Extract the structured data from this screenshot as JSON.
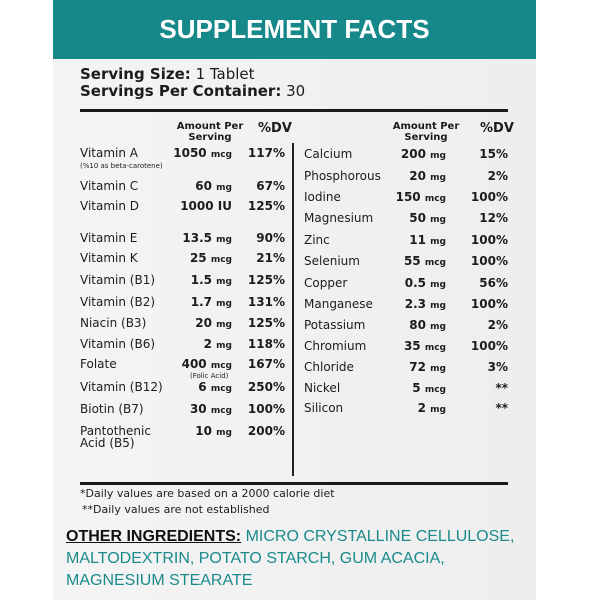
{
  "title": "SUPPLEMENT FACTS",
  "serving": {
    "size_label": "Serving Size:",
    "size_value": "1 Tablet",
    "per_container_label": "Servings Per Container:",
    "per_container_value": "30"
  },
  "columns": {
    "amount": "Amount Per Serving",
    "dv": "%DV"
  },
  "left_rows": [
    {
      "name": "Vitamin A",
      "note": "(%10 as beta-carotene)",
      "amount": "1050",
      "unit": "mcg",
      "dv": "117%"
    },
    {
      "name": "Vitamin C",
      "amount": "60",
      "unit": "mg",
      "dv": "67%"
    },
    {
      "name": "Vitamin D",
      "amount": "1000 IU",
      "unit": "",
      "dv": "125%"
    },
    {
      "name": "Vitamin E",
      "amount": "13.5",
      "unit": "mg",
      "dv": "90%"
    },
    {
      "name": "Vitamin K",
      "amount": "25",
      "unit": "mcg",
      "dv": "21%"
    },
    {
      "name": "Vitamin (B1)",
      "amount": "1.5",
      "unit": "mg",
      "dv": "125%"
    },
    {
      "name": "Vitamin (B2)",
      "amount": "1.7",
      "unit": "mg",
      "dv": "131%"
    },
    {
      "name": "Niacin (B3)",
      "amount": "20",
      "unit": "mg",
      "dv": "125%"
    },
    {
      "name": "Vitamin (B6)",
      "amount": "2",
      "unit": "mg",
      "dv": "118%"
    },
    {
      "name": "Folate",
      "amount": "400",
      "unit": "mcg",
      "amount_note": "(Folic Acid)",
      "dv": "167%"
    },
    {
      "name": "Vitamin (B12)",
      "amount": "6",
      "unit": "mcg",
      "dv": "250%"
    },
    {
      "name": "Biotin (B7)",
      "amount": "30",
      "unit": "mcg",
      "dv": "100%"
    },
    {
      "name": "Pantothenic",
      "name2": "Acid (B5)",
      "amount": "10",
      "unit": "mg",
      "dv": "200%"
    }
  ],
  "right_rows": [
    {
      "name": "Calcium",
      "amount": "200",
      "unit": "mg",
      "dv": "15%"
    },
    {
      "name": "Phosphorous",
      "amount": "20",
      "unit": "mg",
      "dv": "2%"
    },
    {
      "name": "Iodine",
      "amount": "150",
      "unit": "mcg",
      "dv": "100%"
    },
    {
      "name": "Magnesium",
      "amount": "50",
      "unit": "mg",
      "dv": "12%"
    },
    {
      "name": "Zinc",
      "amount": "11",
      "unit": "mg",
      "dv": "100%"
    },
    {
      "name": "Selenium",
      "amount": "55",
      "unit": "mcg",
      "dv": "100%"
    },
    {
      "name": "Copper",
      "amount": "0.5",
      "unit": "mg",
      "dv": "56%"
    },
    {
      "name": "Manganese",
      "amount": "2.3",
      "unit": "mg",
      "dv": "100%"
    },
    {
      "name": "Potassium",
      "amount": "80",
      "unit": "mg",
      "dv": "2%"
    },
    {
      "name": "Chromium",
      "amount": "35",
      "unit": "mcg",
      "dv": "100%"
    },
    {
      "name": "Chloride",
      "amount": "72",
      "unit": "mg",
      "dv": "3%"
    },
    {
      "name": "Nickel",
      "amount": "5",
      "unit": "mcg",
      "dv": "**"
    },
    {
      "name": "Silicon",
      "amount": "2",
      "unit": "mg",
      "dv": "**"
    }
  ],
  "footnotes": [
    "*Daily values are based on a 2000 calorie diet",
    "**Daily values are not established"
  ],
  "other_ingredients": {
    "label": "OTHER INGREDIENTS:",
    "text": "MICRO CRYSTALLINE CELLULOSE, MALTODEXTRIN, POTATO STARCH, GUM ACACIA, MAGNESIUM STEARATE"
  },
  "colors": {
    "brand": "#17888a",
    "text": "#1c1c1c"
  }
}
